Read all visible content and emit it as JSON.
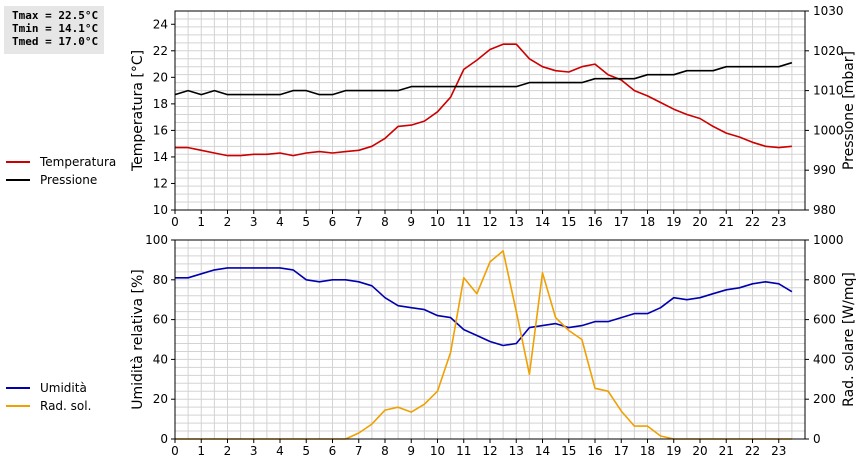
{
  "stats": [
    {
      "label": "Tmax",
      "value": "22.5°C"
    },
    {
      "label": "Tmin",
      "value": "14.1°C"
    },
    {
      "label": "Tmed",
      "value": "17.0°C"
    }
  ],
  "colors": {
    "temperature": "#cc0000",
    "pressure": "#000000",
    "humidity": "#0000b0",
    "radiation": "#f0a000",
    "grid": "#d3d3d3"
  },
  "legend_top": [
    {
      "label": "Temperatura",
      "color": "#cc0000"
    },
    {
      "label": "Pressione",
      "color": "#000000"
    }
  ],
  "legend_bottom": [
    {
      "label": "Umidità",
      "color": "#0000b0"
    },
    {
      "label": "Rad. sol.",
      "color": "#f0a000"
    }
  ],
  "chart_data": [
    {
      "type": "line",
      "ylabel": "Temperatura [°C]",
      "y2label": "Pressione [mbar]",
      "xlim": [
        0,
        24
      ],
      "ylim": [
        10,
        25
      ],
      "y2lim": [
        980,
        1030
      ],
      "x_ticks": [
        0,
        1,
        2,
        3,
        4,
        5,
        6,
        7,
        8,
        9,
        10,
        11,
        12,
        13,
        14,
        15,
        16,
        17,
        18,
        19,
        20,
        21,
        22,
        23
      ],
      "y_ticks": [
        10,
        12,
        14,
        16,
        18,
        20,
        22,
        24
      ],
      "y2_ticks": [
        980,
        990,
        1000,
        1010,
        1020,
        1030
      ],
      "grid": true,
      "series": [
        {
          "name": "Temperatura",
          "axis": "left",
          "x": [
            0,
            0.5,
            1,
            1.5,
            2,
            2.5,
            3,
            3.5,
            4,
            4.5,
            5,
            5.5,
            6,
            6.5,
            7,
            7.5,
            8,
            8.5,
            9,
            9.5,
            10,
            10.5,
            11,
            11.5,
            12,
            12.5,
            13,
            13.5,
            14,
            14.5,
            15,
            15.5,
            16,
            16.5,
            17,
            17.5,
            18,
            18.5,
            19,
            19.5,
            20,
            20.5,
            21,
            21.5,
            22,
            22.5,
            23,
            23.5
          ],
          "values": [
            14.7,
            14.7,
            14.5,
            14.3,
            14.1,
            14.1,
            14.2,
            14.2,
            14.3,
            14.1,
            14.3,
            14.4,
            14.3,
            14.4,
            14.5,
            14.8,
            15.4,
            16.3,
            16.4,
            16.7,
            17.4,
            18.5,
            20.6,
            21.3,
            22.1,
            22.5,
            22.5,
            21.4,
            20.8,
            20.5,
            20.4,
            20.8,
            21.0,
            20.2,
            19.8,
            19.0,
            18.6,
            18.1,
            17.6,
            17.2,
            16.9,
            16.3,
            15.8,
            15.5,
            15.1,
            14.8,
            14.7,
            14.8
          ]
        },
        {
          "name": "Pressione",
          "axis": "right",
          "x": [
            0,
            0.5,
            1,
            1.5,
            2,
            2.5,
            3,
            3.5,
            4,
            4.5,
            5,
            5.5,
            6,
            6.5,
            7,
            7.5,
            8,
            8.5,
            9,
            9.5,
            10,
            10.5,
            11,
            11.5,
            12,
            12.5,
            13,
            13.5,
            14,
            14.5,
            15,
            15.5,
            16,
            16.5,
            17,
            17.5,
            18,
            18.5,
            19,
            19.5,
            20,
            20.5,
            21,
            21.5,
            22,
            22.5,
            23,
            23.5
          ],
          "values": [
            1009,
            1010,
            1009,
            1010,
            1009,
            1009,
            1009,
            1009,
            1009,
            1010,
            1010,
            1009,
            1009,
            1010,
            1010,
            1010,
            1010,
            1010,
            1011,
            1011,
            1011,
            1011,
            1011,
            1011,
            1011,
            1011,
            1011,
            1012,
            1012,
            1012,
            1012,
            1012,
            1013,
            1013,
            1013,
            1013,
            1014,
            1014,
            1014,
            1015,
            1015,
            1015,
            1016,
            1016,
            1016,
            1016,
            1016,
            1017
          ]
        }
      ]
    },
    {
      "type": "line",
      "ylabel": "Umidità relativa [%]",
      "y2label": "Rad. solare [W/mq]",
      "xlim": [
        0,
        24
      ],
      "ylim": [
        0,
        100
      ],
      "y2lim": [
        0,
        1000
      ],
      "x_ticks": [
        0,
        1,
        2,
        3,
        4,
        5,
        6,
        7,
        8,
        9,
        10,
        11,
        12,
        13,
        14,
        15,
        16,
        17,
        18,
        19,
        20,
        21,
        22,
        23
      ],
      "y_ticks": [
        0,
        20,
        40,
        60,
        80,
        100
      ],
      "y2_ticks": [
        0,
        200,
        400,
        600,
        800,
        1000
      ],
      "grid": true,
      "series": [
        {
          "name": "Umidità",
          "axis": "left",
          "x": [
            0,
            0.5,
            1,
            1.5,
            2,
            2.5,
            3,
            3.5,
            4,
            4.5,
            5,
            5.5,
            6,
            6.5,
            7,
            7.5,
            8,
            8.5,
            9,
            9.5,
            10,
            10.5,
            11,
            11.5,
            12,
            12.5,
            13,
            13.5,
            14,
            14.5,
            15,
            15.5,
            16,
            16.5,
            17,
            17.5,
            18,
            18.5,
            19,
            19.5,
            20,
            20.5,
            21,
            21.5,
            22,
            22.5,
            23,
            23.5
          ],
          "values": [
            81,
            81,
            83,
            85,
            86,
            86,
            86,
            86,
            86,
            85,
            80,
            79,
            80,
            80,
            79,
            77,
            71,
            67,
            66,
            65,
            62,
            61,
            55,
            52,
            49,
            47,
            48,
            56,
            57,
            58,
            56,
            57,
            59,
            59,
            61,
            63,
            63,
            66,
            71,
            70,
            71,
            73,
            75,
            76,
            78,
            79,
            78,
            74
          ]
        },
        {
          "name": "Rad. sol.",
          "axis": "right",
          "x": [
            0,
            0.5,
            1,
            1.5,
            2,
            2.5,
            3,
            3.5,
            4,
            4.5,
            5,
            5.5,
            6,
            6.5,
            7,
            7.5,
            8,
            8.5,
            9,
            9.5,
            10,
            10.5,
            11,
            11.5,
            12,
            12.5,
            13,
            13.5,
            14,
            14.5,
            15,
            15.5,
            16,
            16.5,
            17,
            17.5,
            18,
            18.5,
            19,
            19.5,
            20,
            20.5,
            21,
            21.5,
            22,
            22.5,
            23,
            23.5
          ],
          "values": [
            0,
            0,
            0,
            0,
            0,
            0,
            0,
            0,
            0,
            0,
            0,
            0,
            0,
            0,
            30,
            75,
            145,
            160,
            135,
            175,
            240,
            435,
            810,
            730,
            890,
            945,
            640,
            325,
            835,
            610,
            545,
            500,
            255,
            240,
            140,
            65,
            65,
            15,
            0,
            0,
            0,
            0,
            0,
            0,
            0,
            0,
            0,
            0
          ]
        }
      ]
    }
  ]
}
